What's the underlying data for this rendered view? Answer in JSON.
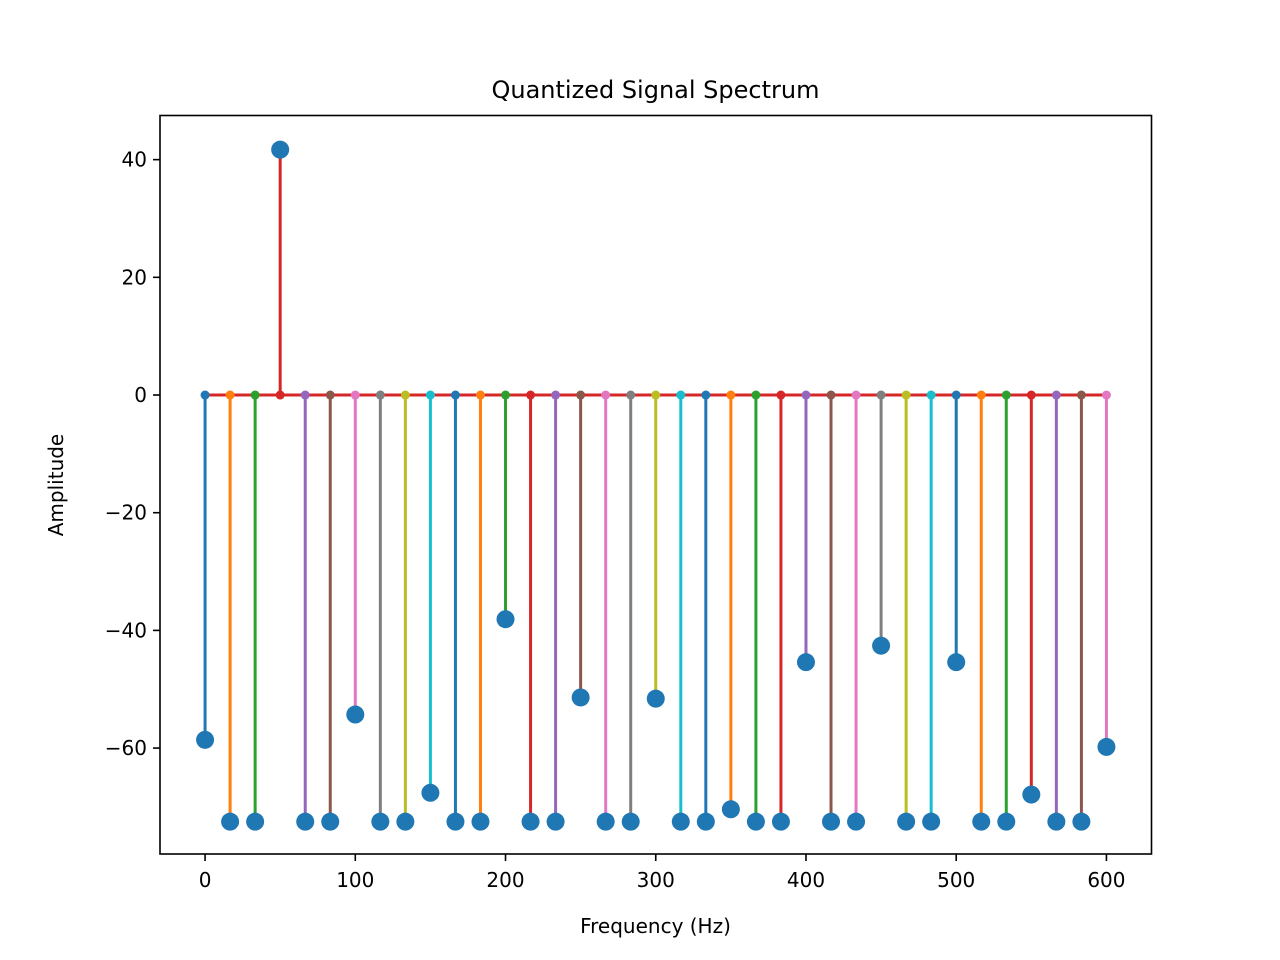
{
  "chart_data": {
    "type": "stem",
    "title": "Quantized Signal Spectrum",
    "xlabel": "Frequency (Hz)",
    "ylabel": "Amplitude",
    "xlim": [
      -30,
      630
    ],
    "ylim": [
      -78,
      47.5
    ],
    "x_ticks": [
      0,
      100,
      200,
      300,
      400,
      500,
      600
    ],
    "y_ticks": [
      40,
      20,
      0,
      -20,
      -40,
      -60
    ],
    "x_tick_labels": [
      "0",
      "100",
      "200",
      "300",
      "400",
      "500",
      "600"
    ],
    "y_tick_labels": [
      "40",
      "20",
      "0",
      "−20",
      "−40",
      "−60"
    ],
    "grid": false,
    "legend": false,
    "baseline": 0,
    "marker_color": "#1f77b4",
    "baseline_color": "#d62728",
    "stem_colors": [
      "#1f77b4",
      "#ff7f0e",
      "#2ca02c",
      "#d62728",
      "#9467bd",
      "#8c564b",
      "#e377c2",
      "#7f7f7f",
      "#bcbd22",
      "#17becf"
    ],
    "x": [
      0,
      16.67,
      33.33,
      50,
      66.67,
      83.33,
      100,
      116.67,
      133.33,
      150,
      166.67,
      183.33,
      200,
      216.67,
      233.33,
      250,
      266.67,
      283.33,
      300,
      316.67,
      333.33,
      350,
      366.67,
      383.33,
      400,
      416.67,
      433.33,
      450,
      466.67,
      483.33,
      500,
      516.67,
      533.33,
      550,
      566.67,
      583.33,
      600
    ],
    "values": [
      -58.6,
      -72.5,
      -72.5,
      41.7,
      -72.5,
      -72.5,
      -54.3,
      -72.5,
      -72.5,
      -67.6,
      -72.5,
      -72.5,
      -38.1,
      -72.5,
      -72.5,
      -51.4,
      -72.5,
      -72.5,
      -51.6,
      -72.5,
      -72.5,
      -70.4,
      -72.5,
      -72.5,
      -45.4,
      -72.5,
      -72.5,
      -42.6,
      -72.5,
      -72.5,
      -45.4,
      -72.5,
      -72.5,
      -67.9,
      -72.5,
      -72.5,
      -59.8
    ]
  }
}
